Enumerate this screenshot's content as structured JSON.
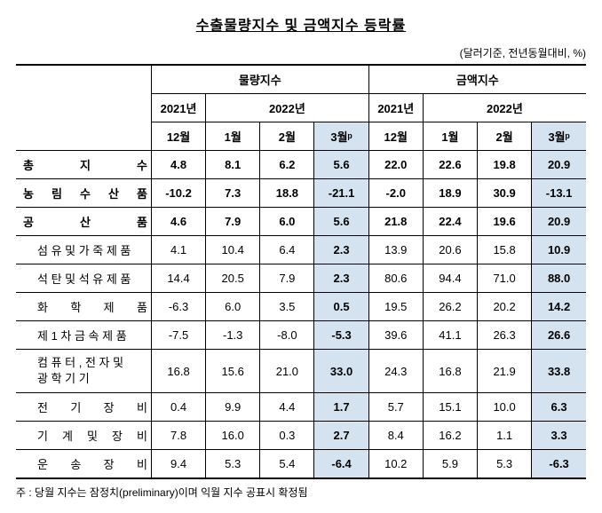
{
  "title": "수출물량지수 및 금액지수 등락률",
  "unit_note": "(달러기준, 전년동월대비, %)",
  "footnote": "주 : 당월 지수는 잠정치(preliminary)이며 익월 지수 공표시 확정됨",
  "header": {
    "group1": "물량지수",
    "group2": "금액지수",
    "year1": "2021년",
    "year2": "2022년",
    "months": [
      "12월",
      "1월",
      "2월",
      "3월ᵖ"
    ]
  },
  "rows": [
    {
      "label_chars": [
        "총",
        "지",
        "수"
      ],
      "indent": false,
      "bold": true,
      "vol": [
        "4.8",
        "8.1",
        "6.2",
        "5.6"
      ],
      "amt": [
        "22.0",
        "22.6",
        "19.8",
        "20.9"
      ]
    },
    {
      "label_chars": [
        "농",
        "림",
        "수",
        "산",
        "품"
      ],
      "indent": false,
      "bold": true,
      "vol": [
        "-10.2",
        "7.3",
        "18.8",
        "-21.1"
      ],
      "amt": [
        "-2.0",
        "18.9",
        "30.9",
        "-13.1"
      ]
    },
    {
      "label_chars": [
        "공",
        "산",
        "품"
      ],
      "indent": false,
      "bold": true,
      "vol": [
        "4.6",
        "7.9",
        "6.0",
        "5.6"
      ],
      "amt": [
        "21.8",
        "22.4",
        "19.6",
        "20.9"
      ]
    },
    {
      "label_text": "섬 유 및 가 죽 제 품",
      "indent": true,
      "bold": false,
      "vol": [
        "4.1",
        "10.4",
        "6.4",
        "2.3"
      ],
      "amt": [
        "13.9",
        "20.6",
        "15.8",
        "10.9"
      ]
    },
    {
      "label_text": "석 탄 및 석 유 제 품",
      "indent": true,
      "bold": false,
      "vol": [
        "14.4",
        "20.5",
        "7.9",
        "2.3"
      ],
      "amt": [
        "80.6",
        "94.4",
        "71.0",
        "88.0"
      ]
    },
    {
      "label_chars": [
        "화",
        "학",
        "제",
        "품"
      ],
      "indent": true,
      "bold": false,
      "vol": [
        "-6.3",
        "6.0",
        "3.5",
        "0.5"
      ],
      "amt": [
        "19.5",
        "26.2",
        "20.2",
        "14.2"
      ]
    },
    {
      "label_text": "제 1 차 금 속 제 품",
      "indent": true,
      "bold": false,
      "vol": [
        "-7.5",
        "-1.3",
        "-8.0",
        "-5.3"
      ],
      "amt": [
        "39.6",
        "41.1",
        "26.3",
        "26.6"
      ]
    },
    {
      "label_text": "컴 퓨 터 , 전 자 및\n광 학 기 기",
      "indent": true,
      "bold": false,
      "multiline": true,
      "vol": [
        "16.8",
        "15.6",
        "21.0",
        "33.0"
      ],
      "amt": [
        "24.3",
        "16.8",
        "21.9",
        "33.8"
      ]
    },
    {
      "label_chars": [
        "전",
        "기",
        "장",
        "비"
      ],
      "indent": true,
      "bold": false,
      "vol": [
        "0.4",
        "9.9",
        "4.4",
        "1.7"
      ],
      "amt": [
        "5.7",
        "15.1",
        "10.0",
        "6.3"
      ]
    },
    {
      "label_chars": [
        "기",
        "계",
        "및",
        "장",
        "비"
      ],
      "indent": true,
      "bold": false,
      "vol": [
        "7.8",
        "16.0",
        "0.3",
        "2.7"
      ],
      "amt": [
        "8.4",
        "16.2",
        "1.1",
        "3.3"
      ]
    },
    {
      "label_chars": [
        "운",
        "송",
        "장",
        "비"
      ],
      "indent": true,
      "bold": false,
      "vol": [
        "9.4",
        "5.3",
        "5.4",
        "-6.4"
      ],
      "amt": [
        "10.2",
        "5.9",
        "5.3",
        "-6.3"
      ]
    }
  ],
  "colors": {
    "highlight_bg": "#d5e3f0",
    "border": "#000000",
    "text": "#000000",
    "background": "#ffffff"
  }
}
